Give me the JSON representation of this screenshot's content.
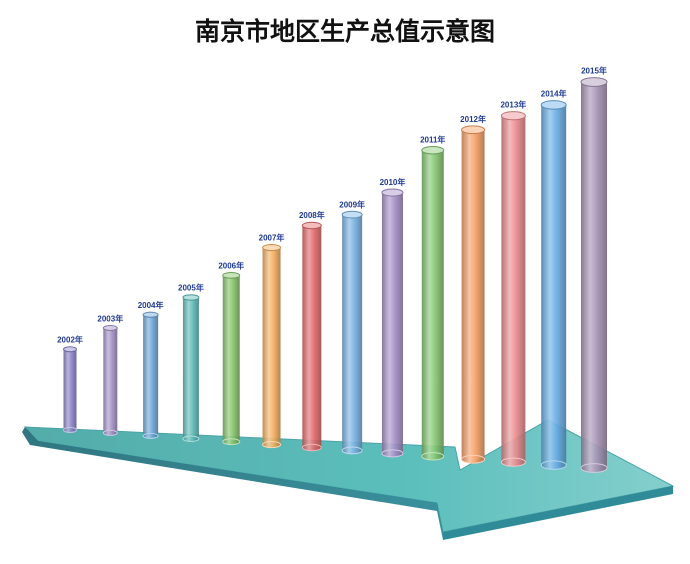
{
  "chart_data": {
    "type": "bar",
    "title": "南京市地区生产总值示意图",
    "categories": [
      "2002年",
      "2003年",
      "2004年",
      "2005年",
      "2006年",
      "2007年",
      "2008年",
      "2009年",
      "2010年",
      "2011年",
      "2012年",
      "2013年",
      "2014年",
      "2015年"
    ],
    "values": [
      1.0,
      1.3,
      1.5,
      1.75,
      2.06,
      2.44,
      2.75,
      2.92,
      3.23,
      3.79,
      4.08,
      4.29,
      4.46,
      4.78
    ],
    "xlabel": "",
    "ylabel": "",
    "grid": false,
    "legend": "none"
  },
  "colors": {
    "bars": [
      "#8a84c8",
      "#a493c8",
      "#6fa8d9",
      "#5fbdb9",
      "#86c46c",
      "#f6b060",
      "#e46a6d",
      "#7ab3e3",
      "#a890c8",
      "#86c772",
      "#f6a066",
      "#ec8c8f",
      "#6aaee6",
      "#a894b5"
    ],
    "arrow_top": "#5cbfbc",
    "arrow_side": "#2f8b98",
    "label_color": "#1f3a93",
    "title_color": "#111111"
  }
}
